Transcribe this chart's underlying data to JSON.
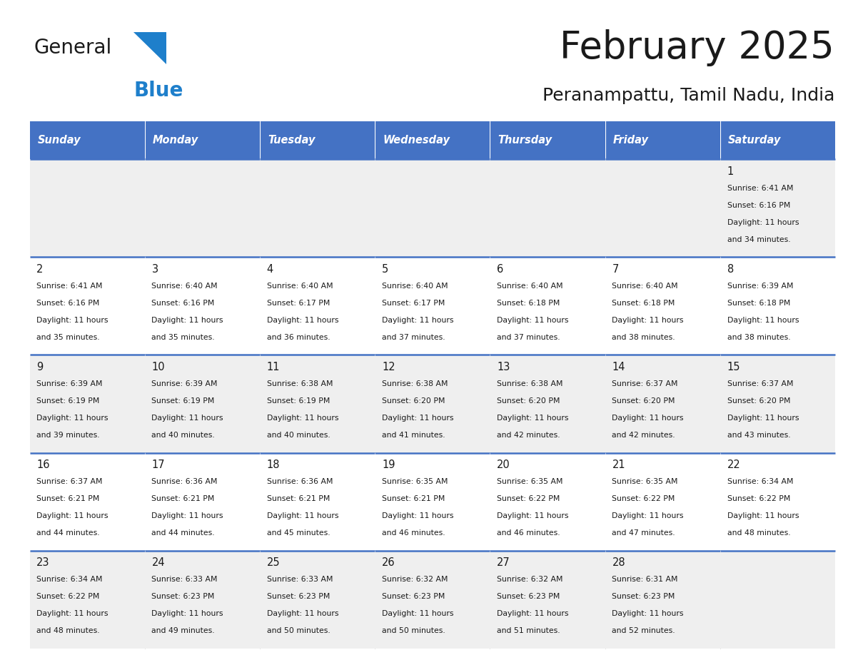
{
  "title": "February 2025",
  "subtitle": "Peranampattu, Tamil Nadu, India",
  "header_bg": "#4472C4",
  "header_text_color": "#FFFFFF",
  "cell_bg_odd": "#EFEFEF",
  "cell_bg_even": "#FFFFFF",
  "separator_color": "#4472C4",
  "text_color": "#1a1a1a",
  "day_headers": [
    "Sunday",
    "Monday",
    "Tuesday",
    "Wednesday",
    "Thursday",
    "Friday",
    "Saturday"
  ],
  "days": [
    {
      "day": 1,
      "col": 6,
      "row": 0,
      "sunrise": "6:41 AM",
      "sunset": "6:16 PM",
      "daylight_hrs": "11 hours",
      "daylight_min": "and 34 minutes."
    },
    {
      "day": 2,
      "col": 0,
      "row": 1,
      "sunrise": "6:41 AM",
      "sunset": "6:16 PM",
      "daylight_hrs": "11 hours",
      "daylight_min": "and 35 minutes."
    },
    {
      "day": 3,
      "col": 1,
      "row": 1,
      "sunrise": "6:40 AM",
      "sunset": "6:16 PM",
      "daylight_hrs": "11 hours",
      "daylight_min": "and 35 minutes."
    },
    {
      "day": 4,
      "col": 2,
      "row": 1,
      "sunrise": "6:40 AM",
      "sunset": "6:17 PM",
      "daylight_hrs": "11 hours",
      "daylight_min": "and 36 minutes."
    },
    {
      "day": 5,
      "col": 3,
      "row": 1,
      "sunrise": "6:40 AM",
      "sunset": "6:17 PM",
      "daylight_hrs": "11 hours",
      "daylight_min": "and 37 minutes."
    },
    {
      "day": 6,
      "col": 4,
      "row": 1,
      "sunrise": "6:40 AM",
      "sunset": "6:18 PM",
      "daylight_hrs": "11 hours",
      "daylight_min": "and 37 minutes."
    },
    {
      "day": 7,
      "col": 5,
      "row": 1,
      "sunrise": "6:40 AM",
      "sunset": "6:18 PM",
      "daylight_hrs": "11 hours",
      "daylight_min": "and 38 minutes."
    },
    {
      "day": 8,
      "col": 6,
      "row": 1,
      "sunrise": "6:39 AM",
      "sunset": "6:18 PM",
      "daylight_hrs": "11 hours",
      "daylight_min": "and 38 minutes."
    },
    {
      "day": 9,
      "col": 0,
      "row": 2,
      "sunrise": "6:39 AM",
      "sunset": "6:19 PM",
      "daylight_hrs": "11 hours",
      "daylight_min": "and 39 minutes."
    },
    {
      "day": 10,
      "col": 1,
      "row": 2,
      "sunrise": "6:39 AM",
      "sunset": "6:19 PM",
      "daylight_hrs": "11 hours",
      "daylight_min": "and 40 minutes."
    },
    {
      "day": 11,
      "col": 2,
      "row": 2,
      "sunrise": "6:38 AM",
      "sunset": "6:19 PM",
      "daylight_hrs": "11 hours",
      "daylight_min": "and 40 minutes."
    },
    {
      "day": 12,
      "col": 3,
      "row": 2,
      "sunrise": "6:38 AM",
      "sunset": "6:20 PM",
      "daylight_hrs": "11 hours",
      "daylight_min": "and 41 minutes."
    },
    {
      "day": 13,
      "col": 4,
      "row": 2,
      "sunrise": "6:38 AM",
      "sunset": "6:20 PM",
      "daylight_hrs": "11 hours",
      "daylight_min": "and 42 minutes."
    },
    {
      "day": 14,
      "col": 5,
      "row": 2,
      "sunrise": "6:37 AM",
      "sunset": "6:20 PM",
      "daylight_hrs": "11 hours",
      "daylight_min": "and 42 minutes."
    },
    {
      "day": 15,
      "col": 6,
      "row": 2,
      "sunrise": "6:37 AM",
      "sunset": "6:20 PM",
      "daylight_hrs": "11 hours",
      "daylight_min": "and 43 minutes."
    },
    {
      "day": 16,
      "col": 0,
      "row": 3,
      "sunrise": "6:37 AM",
      "sunset": "6:21 PM",
      "daylight_hrs": "11 hours",
      "daylight_min": "and 44 minutes."
    },
    {
      "day": 17,
      "col": 1,
      "row": 3,
      "sunrise": "6:36 AM",
      "sunset": "6:21 PM",
      "daylight_hrs": "11 hours",
      "daylight_min": "and 44 minutes."
    },
    {
      "day": 18,
      "col": 2,
      "row": 3,
      "sunrise": "6:36 AM",
      "sunset": "6:21 PM",
      "daylight_hrs": "11 hours",
      "daylight_min": "and 45 minutes."
    },
    {
      "day": 19,
      "col": 3,
      "row": 3,
      "sunrise": "6:35 AM",
      "sunset": "6:21 PM",
      "daylight_hrs": "11 hours",
      "daylight_min": "and 46 minutes."
    },
    {
      "day": 20,
      "col": 4,
      "row": 3,
      "sunrise": "6:35 AM",
      "sunset": "6:22 PM",
      "daylight_hrs": "11 hours",
      "daylight_min": "and 46 minutes."
    },
    {
      "day": 21,
      "col": 5,
      "row": 3,
      "sunrise": "6:35 AM",
      "sunset": "6:22 PM",
      "daylight_hrs": "11 hours",
      "daylight_min": "and 47 minutes."
    },
    {
      "day": 22,
      "col": 6,
      "row": 3,
      "sunrise": "6:34 AM",
      "sunset": "6:22 PM",
      "daylight_hrs": "11 hours",
      "daylight_min": "and 48 minutes."
    },
    {
      "day": 23,
      "col": 0,
      "row": 4,
      "sunrise": "6:34 AM",
      "sunset": "6:22 PM",
      "daylight_hrs": "11 hours",
      "daylight_min": "and 48 minutes."
    },
    {
      "day": 24,
      "col": 1,
      "row": 4,
      "sunrise": "6:33 AM",
      "sunset": "6:23 PM",
      "daylight_hrs": "11 hours",
      "daylight_min": "and 49 minutes."
    },
    {
      "day": 25,
      "col": 2,
      "row": 4,
      "sunrise": "6:33 AM",
      "sunset": "6:23 PM",
      "daylight_hrs": "11 hours",
      "daylight_min": "and 50 minutes."
    },
    {
      "day": 26,
      "col": 3,
      "row": 4,
      "sunrise": "6:32 AM",
      "sunset": "6:23 PM",
      "daylight_hrs": "11 hours",
      "daylight_min": "and 50 minutes."
    },
    {
      "day": 27,
      "col": 4,
      "row": 4,
      "sunrise": "6:32 AM",
      "sunset": "6:23 PM",
      "daylight_hrs": "11 hours",
      "daylight_min": "and 51 minutes."
    },
    {
      "day": 28,
      "col": 5,
      "row": 4,
      "sunrise": "6:31 AM",
      "sunset": "6:23 PM",
      "daylight_hrs": "11 hours",
      "daylight_min": "and 52 minutes."
    }
  ],
  "num_rows": 5,
  "num_cols": 7,
  "logo_text_general": "General",
  "logo_text_blue": "Blue",
  "logo_color_general": "#1a1a1a",
  "logo_color_blue": "#1e7fcb",
  "logo_triangle_color": "#1e7fcb"
}
